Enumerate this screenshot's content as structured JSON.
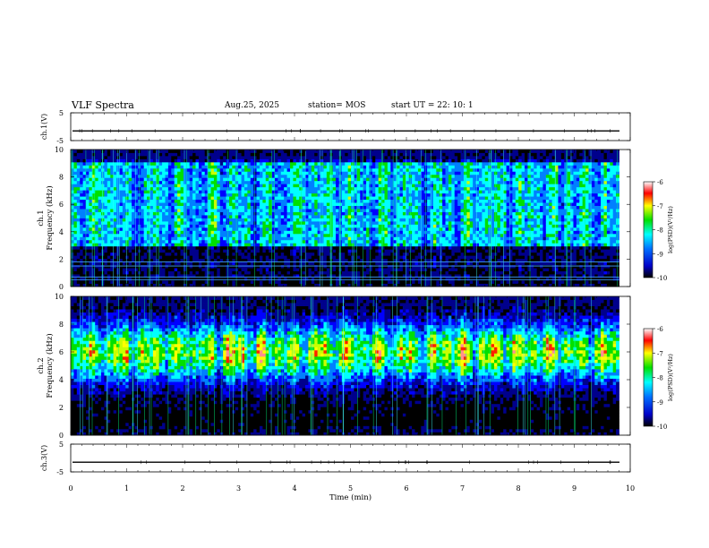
{
  "header": {
    "title": "VLF Spectra",
    "date": "Aug.25, 2025",
    "station": "station= MOS",
    "start": "start  UT =   22: 10: 1"
  },
  "chart_data": [
    {
      "type": "line",
      "name": "waveform-top",
      "ylabel": "ch.1(V)",
      "ylim": [
        -5,
        5
      ],
      "y_ticks": [
        "5",
        "-5"
      ],
      "xlim": [
        0,
        10
      ],
      "value": -1.5
    },
    {
      "type": "heatmap",
      "name": "spectrogram-ch1",
      "ylabel": "ch.1\nFrequency (kHz)",
      "ylabel_lines": [
        "ch.1",
        "Frequency (kHz)"
      ],
      "ylim": [
        0,
        10
      ],
      "y_ticks": [
        "0",
        "2",
        "4",
        "6",
        "8",
        "10"
      ],
      "xlim": [
        0,
        10
      ],
      "data_x_end": 9.8,
      "colorbar": {
        "label": "log(PSD)(V²/Hz)",
        "range": [
          -10,
          -6
        ],
        "ticks": [
          "-6",
          "-7",
          "-8",
          "-9",
          "-10"
        ]
      },
      "horizontal_lines_khz": [
        0.5,
        0.7,
        1.5,
        1.8
      ],
      "band_khz": [
        3,
        9
      ]
    },
    {
      "type": "heatmap",
      "name": "spectrogram-ch2",
      "ylabel": "ch.2\nFrequency (kHz)",
      "ylabel_lines": [
        "ch.2",
        "Frequency (kHz)"
      ],
      "ylim": [
        0,
        10
      ],
      "y_ticks": [
        "0",
        "2",
        "4",
        "6",
        "8",
        "10"
      ],
      "xlim": [
        0,
        10
      ],
      "data_x_end": 9.8,
      "colorbar": {
        "label": "log(PSD)(V²/Hz)",
        "range": [
          -10,
          -6
        ],
        "ticks": [
          "-6",
          "-7",
          "-8",
          "-9",
          "-10"
        ]
      },
      "band_khz": [
        3,
        8.5
      ],
      "peak_khz": 6
    },
    {
      "type": "line",
      "name": "waveform-bottom",
      "ylabel": "ch.3(V)",
      "ylim": [
        -5,
        5
      ],
      "y_ticks": [
        "5",
        "-5"
      ],
      "xlim": [
        0,
        10
      ],
      "value": -1.5
    }
  ],
  "xaxis": {
    "label": "Time (min)",
    "ticks": [
      "0",
      "1",
      "2",
      "3",
      "4",
      "5",
      "6",
      "7",
      "8",
      "9",
      "10"
    ]
  }
}
